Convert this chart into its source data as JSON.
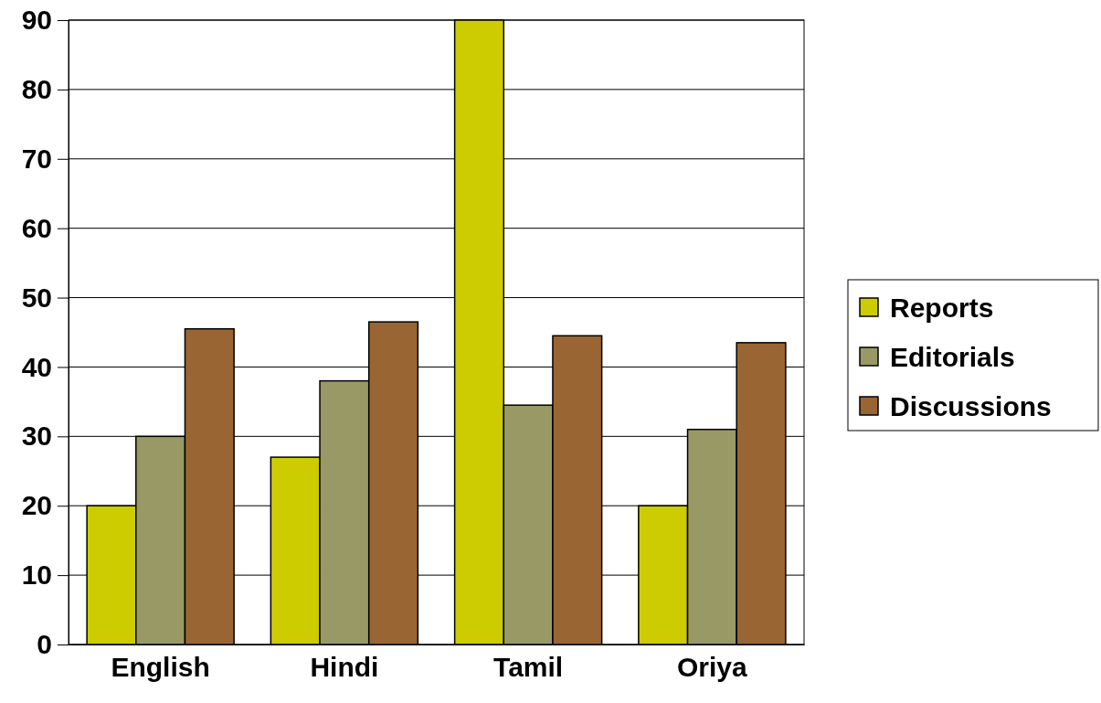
{
  "chart_data": {
    "type": "bar",
    "categories": [
      "English",
      "Hindi",
      "Tamil",
      "Oriya"
    ],
    "series": [
      {
        "name": "Reports",
        "color": "#cccc00",
        "values": [
          20,
          27,
          90,
          20
        ]
      },
      {
        "name": "Editorials",
        "color": "#999966",
        "values": [
          30,
          38,
          34.5,
          31
        ]
      },
      {
        "name": "Discussions",
        "color": "#996633",
        "values": [
          45.5,
          46.5,
          44.5,
          43.5
        ]
      }
    ],
    "ylim": [
      0,
      90
    ],
    "yticks": [
      0,
      10,
      20,
      30,
      40,
      50,
      60,
      70,
      80,
      90
    ],
    "grid": "y",
    "legend": "right"
  }
}
